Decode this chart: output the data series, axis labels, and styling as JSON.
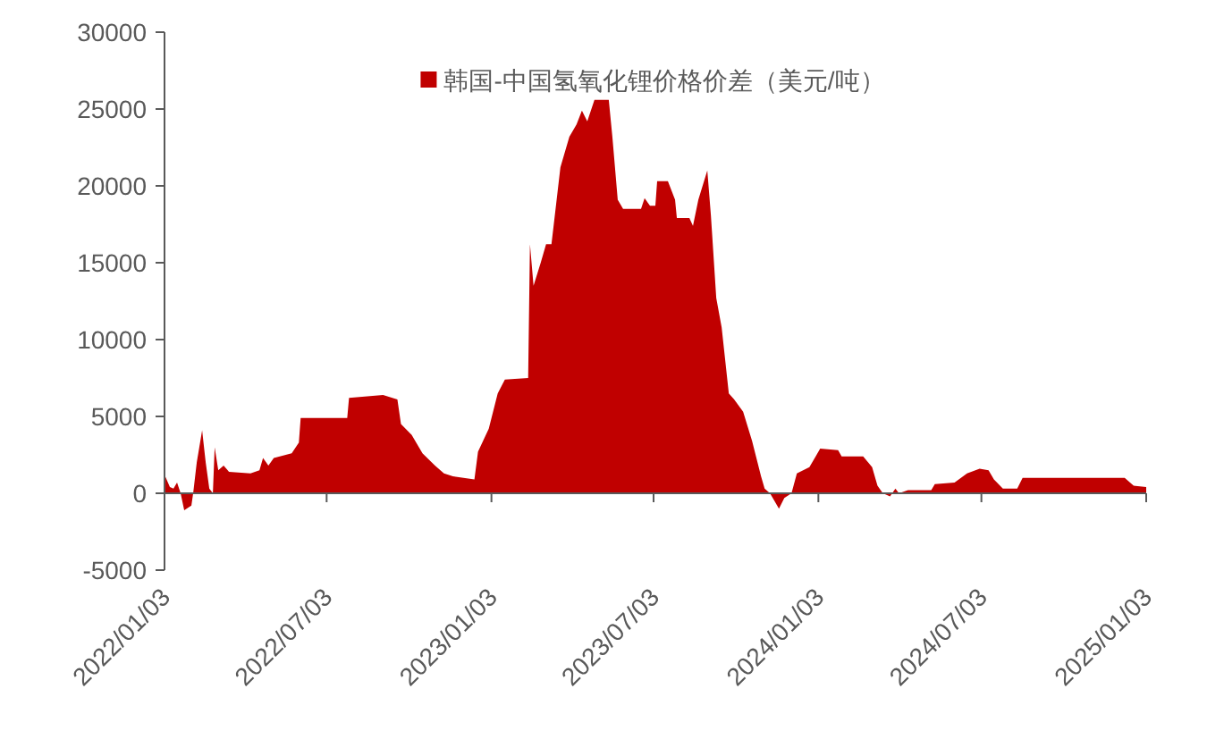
{
  "chart_data": {
    "type": "area",
    "legend": "top",
    "xlim": [
      "2022-01-03",
      "2025-01-03"
    ],
    "xticks": [
      {
        "value": "2022-01-03",
        "label": "2022/01/03"
      },
      {
        "value": "2022-07-03",
        "label": "2022/07/03"
      },
      {
        "value": "2023-01-03",
        "label": "2023/01/03"
      },
      {
        "value": "2023-07-03",
        "label": "2023/07/03"
      },
      {
        "value": "2024-01-03",
        "label": "2024/01/03"
      },
      {
        "value": "2024-07-03",
        "label": "2024/07/03"
      },
      {
        "value": "2025-01-03",
        "label": "2025/01/03"
      }
    ],
    "ylim": [
      -5000,
      30000
    ],
    "yticks": [
      -5000,
      0,
      5000,
      10000,
      15000,
      20000,
      25000,
      30000
    ],
    "x": [
      "2022-01-03",
      "2022-01-09",
      "2022-01-13",
      "2022-01-17",
      "2022-01-21",
      "2022-01-25",
      "2022-02-02",
      "2022-02-04",
      "2022-02-08",
      "2022-02-14",
      "2022-02-18",
      "2022-02-22",
      "2022-02-26",
      "2022-02-28",
      "2022-03-04",
      "2022-03-10",
      "2022-03-16",
      "2022-04-09",
      "2022-04-19",
      "2022-04-23",
      "2022-04-29",
      "2022-05-05",
      "2022-05-25",
      "2022-06-02",
      "2022-06-04",
      "2022-07-02",
      "2022-07-26",
      "2022-07-28",
      "2022-09-04",
      "2022-09-20",
      "2022-09-24",
      "2022-10-06",
      "2022-10-18",
      "2022-11-01",
      "2022-11-11",
      "2022-11-21",
      "2022-12-15",
      "2022-12-19",
      "2022-12-31",
      "2023-01-10",
      "2023-01-18",
      "2023-02-13",
      "2023-02-15",
      "2023-02-19",
      "2023-02-27",
      "2023-03-05",
      "2023-03-11",
      "2023-03-21",
      "2023-03-31",
      "2023-04-08",
      "2023-04-14",
      "2023-04-20",
      "2023-04-28",
      "2023-05-14",
      "2023-05-18",
      "2023-05-24",
      "2023-05-30",
      "2023-06-19",
      "2023-06-23",
      "2023-06-29",
      "2023-07-05",
      "2023-07-07",
      "2023-07-19",
      "2023-07-27",
      "2023-07-29",
      "2023-08-12",
      "2023-08-16",
      "2023-08-22",
      "2023-09-01",
      "2023-09-05",
      "2023-09-11",
      "2023-09-17",
      "2023-09-25",
      "2023-10-01",
      "2023-10-11",
      "2023-10-21",
      "2023-10-31",
      "2023-11-04",
      "2023-11-10",
      "2023-11-20",
      "2023-11-26",
      "2023-12-04",
      "2023-12-10",
      "2023-12-24",
      "2024-01-05",
      "2024-01-25",
      "2024-01-29",
      "2024-02-22",
      "2024-03-03",
      "2024-03-09",
      "2024-03-15",
      "2024-03-23",
      "2024-03-29",
      "2024-04-02",
      "2024-04-12",
      "2024-05-08",
      "2024-05-12",
      "2024-06-03",
      "2024-06-17",
      "2024-07-01",
      "2024-07-11",
      "2024-07-17",
      "2024-07-27",
      "2024-08-12",
      "2024-08-18",
      "2024-12-10",
      "2024-12-20",
      "2025-01-03"
    ],
    "series": [
      {
        "name": "韩国-中国氢氧化锂价格价差（美元/吨）",
        "color": "#c00000",
        "values": [
          1200,
          400,
          300,
          700,
          0,
          -1100,
          -800,
          0,
          2000,
          4100,
          2000,
          300,
          0,
          3000,
          1500,
          1800,
          1400,
          1300,
          1500,
          2300,
          1800,
          2300,
          2600,
          3300,
          4900,
          4900,
          4900,
          6200,
          6400,
          6100,
          4500,
          3800,
          2600,
          1800,
          1300,
          1100,
          900,
          2700,
          4200,
          6500,
          7400,
          7500,
          16200,
          13500,
          15000,
          16200,
          16200,
          21200,
          23200,
          24000,
          24900,
          24200,
          25600,
          25600,
          23200,
          19100,
          18500,
          18500,
          19200,
          18700,
          18700,
          20300,
          20300,
          19100,
          17900,
          17900,
          17400,
          19100,
          21000,
          18100,
          12700,
          10800,
          6500,
          6100,
          5300,
          3400,
          1100,
          300,
          0,
          -1000,
          -300,
          0,
          1300,
          1700,
          2900,
          2800,
          2400,
          2400,
          1700,
          500,
          0,
          -200,
          300,
          0,
          200,
          200,
          600,
          700,
          1300,
          1600,
          1500,
          900,
          300,
          300,
          1000,
          1000,
          500,
          400
        ]
      }
    ]
  }
}
